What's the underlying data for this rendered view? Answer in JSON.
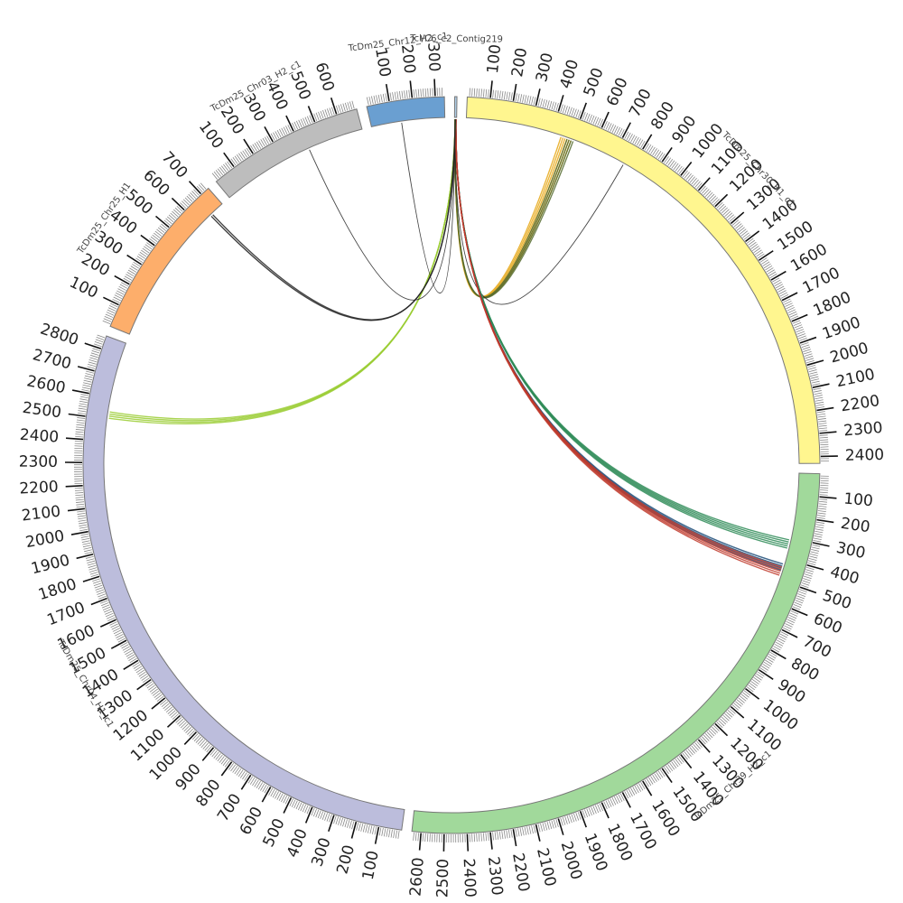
{
  "chart_data": {
    "type": "chord",
    "title": "",
    "tick_step": 100,
    "minor_step": 10,
    "direction": "clockwise",
    "start_angle_deg": -89.5,
    "gap_deg": 1.6,
    "segments": [
      {
        "id": "contig219",
        "name": "Tcl/C6_c2_Contig219",
        "length": 3,
        "color": "#aecde6",
        "tick_labels": []
      },
      {
        "id": "chr30",
        "name": "TcDm25_Chr30_H1_c1",
        "length": 2430,
        "color": "#fff68f",
        "tick_labels": [
          "100",
          "200",
          "300",
          "400",
          "500",
          "600",
          "700",
          "800",
          "900",
          "1000",
          "1100",
          "1200",
          "1300",
          "1400",
          "1500",
          "1600",
          "1700",
          "1800",
          "1900",
          "2000",
          "2100",
          "2200",
          "2300",
          "2400"
        ]
      },
      {
        "id": "chr39",
        "name": "TcDm25_Chr39_H2_c1",
        "length": 2640,
        "color": "#a1d99b",
        "tick_labels": [
          "100",
          "200",
          "300",
          "400",
          "500",
          "600",
          "700",
          "800",
          "900",
          "1000",
          "1100",
          "1200",
          "1300",
          "1400",
          "1500",
          "1600",
          "1700",
          "1800",
          "1900",
          "2000",
          "2100",
          "2200",
          "2300",
          "2400",
          "2500",
          "2600"
        ]
      },
      {
        "id": "chr04",
        "name": "TcDm25_Chr04_H1_c1",
        "length": 2860,
        "color": "#bcbddc",
        "tick_labels": [
          "100",
          "200",
          "300",
          "400",
          "500",
          "600",
          "700",
          "800",
          "900",
          "1000",
          "1100",
          "1200",
          "1300",
          "1400",
          "1500",
          "1600",
          "1700",
          "1800",
          "1900",
          "2000",
          "2100",
          "2200",
          "2300",
          "2400",
          "2500",
          "2600",
          "2700",
          "2800"
        ]
      },
      {
        "id": "chr25",
        "name": "TcDm25_Chr25_H1",
        "length": 740,
        "color": "#fdae6b",
        "tick_labels": [
          "100",
          "200",
          "300",
          "400",
          "500",
          "600",
          "700"
        ]
      },
      {
        "id": "chr03",
        "name": "TcDm25_Chr03_H2_c1",
        "length": 690,
        "color": "#bdbdbd",
        "tick_labels": [
          "100",
          "200",
          "300",
          "400",
          "500",
          "600"
        ]
      },
      {
        "id": "chr12",
        "name": "TcDm25_Chr12_H2_c1",
        "length": 340,
        "color": "#6a9fd1",
        "tick_labels": [
          "100",
          "200",
          "300"
        ]
      }
    ],
    "links": [
      {
        "from": "contig219",
        "from_pos": 1,
        "to": "chr30",
        "to_pos": 470,
        "color": "#e6a817",
        "count": 6
      },
      {
        "from": "contig219",
        "from_pos": 1,
        "to": "chr30",
        "to_pos": 490,
        "color": "#556b2f",
        "count": 4
      },
      {
        "from": "contig219",
        "from_pos": 1,
        "to": "chr30",
        "to_pos": 760,
        "color": "#222222",
        "count": 1
      },
      {
        "from": "contig219",
        "from_pos": 2,
        "to": "chr39",
        "to_pos": 330,
        "color": "#2e8b57",
        "count": 5
      },
      {
        "from": "contig219",
        "from_pos": 2,
        "to": "chr39",
        "to_pos": 440,
        "color": "#1f4e79",
        "count": 4
      },
      {
        "from": "contig219",
        "from_pos": 2,
        "to": "chr39",
        "to_pos": 460,
        "color": "#c0392b",
        "count": 5
      },
      {
        "from": "contig219",
        "from_pos": 1,
        "to": "chr04",
        "to_pos": 2520,
        "color": "#9acd32",
        "count": 4
      },
      {
        "from": "contig219",
        "from_pos": 1,
        "to": "chr25",
        "to_pos": 670,
        "color": "#222222",
        "count": 2
      },
      {
        "from": "contig219",
        "from_pos": 1,
        "to": "chr03",
        "to_pos": 430,
        "color": "#222222",
        "count": 1
      },
      {
        "from": "contig219",
        "from_pos": 1,
        "to": "chr12",
        "to_pos": 140,
        "color": "#222222",
        "count": 1
      }
    ]
  }
}
